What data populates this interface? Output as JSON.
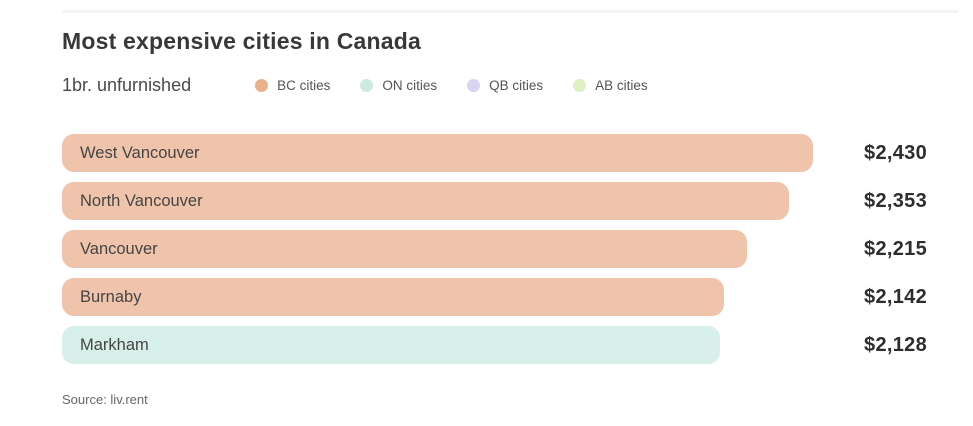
{
  "header": {
    "title": "Most expensive cities in Canada",
    "subtitle": "1br. unfurnished"
  },
  "legend": [
    {
      "label": "BC cities",
      "color": "#eab08c"
    },
    {
      "label": "ON cities",
      "color": "#cdeae1"
    },
    {
      "label": "QB cities",
      "color": "#d9d3f4"
    },
    {
      "label": "AB cities",
      "color": "#dff0c2"
    }
  ],
  "chart_data": {
    "type": "bar",
    "orientation": "horizontal",
    "title": "Most expensive cities in Canada",
    "subtitle": "1br. unfurnished",
    "categories": [
      "West Vancouver",
      "North Vancouver",
      "Vancouver",
      "Burnaby",
      "Markham"
    ],
    "values": [
      2430,
      2353,
      2215,
      2142,
      2128
    ],
    "value_labels": [
      "$2,430",
      "$2,353",
      "$2,215",
      "$2,142",
      "$2,128"
    ],
    "groups": [
      "BC cities",
      "BC cities",
      "BC cities",
      "BC cities",
      "ON cities"
    ],
    "bar_colors": [
      "#f0c4aa",
      "#f0c4aa",
      "#f0c4aa",
      "#f0c4aa",
      "#d6efe8"
    ],
    "xlim": [
      0,
      2430
    ],
    "grid": false,
    "legend_position": "top"
  },
  "footer": {
    "source": "Source: liv.rent"
  }
}
